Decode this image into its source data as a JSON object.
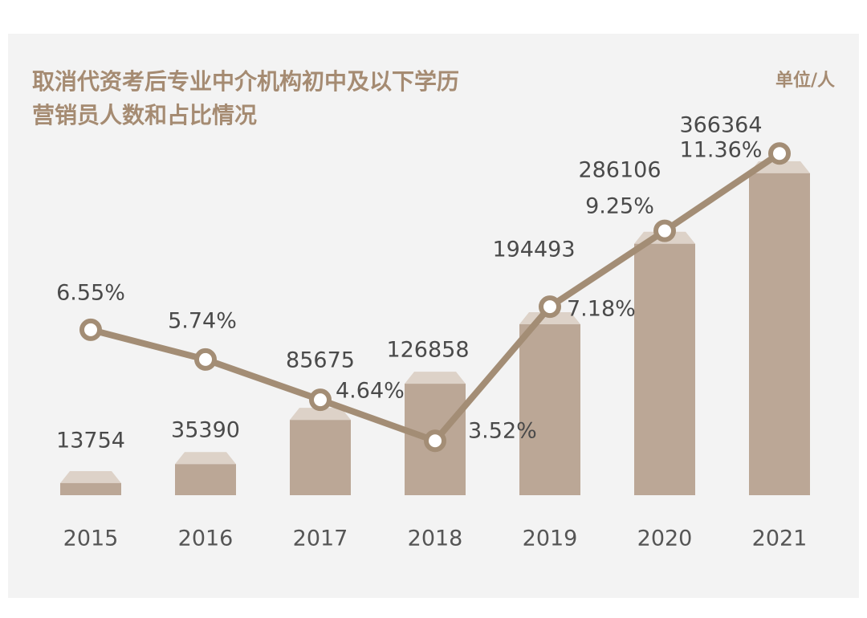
{
  "chart_data": {
    "type": "bar-line",
    "title": [
      "取消代资考后专业中介机构初中及以下学历",
      "营销员人数和占比情况"
    ],
    "unit": "单位/人",
    "categories": [
      "2015",
      "2016",
      "2017",
      "2018",
      "2019",
      "2020",
      "2021"
    ],
    "series": [
      {
        "type": "bar",
        "color": "#bba796",
        "values": [
          13754,
          35390,
          85675,
          126858,
          194493,
          286106,
          366364
        ]
      },
      {
        "type": "line",
        "axis": "y2",
        "color": "#a38d75",
        "values": [
          6.55,
          5.74,
          4.64,
          3.52,
          7.18,
          9.25,
          11.36
        ],
        "value_labels": [
          "6.55%",
          "5.74%",
          "4.64%",
          "3.52%",
          "7.18%",
          "9.25%",
          "11.36%"
        ]
      }
    ],
    "ylim": [
      0,
      400000
    ],
    "y2lim": [
      0,
      12
    ]
  }
}
